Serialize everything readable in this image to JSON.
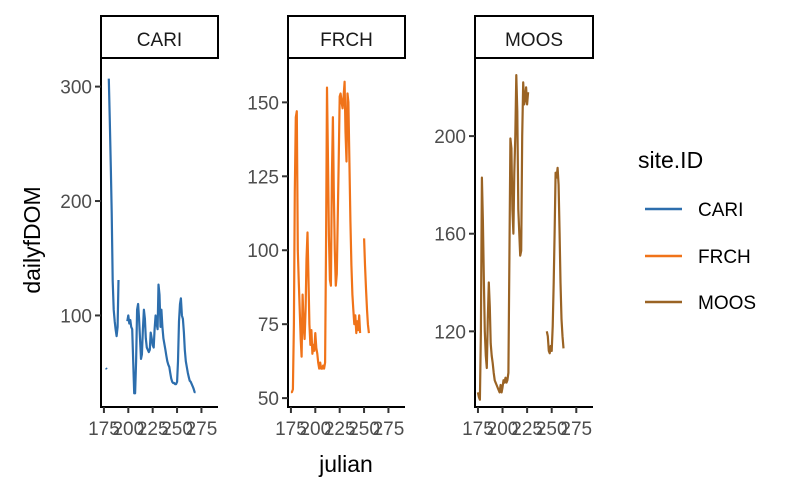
{
  "chart_data": {
    "type": "line",
    "xlabel": "julian",
    "ylabel": "dailyfDOM",
    "xlim": [
      172,
      292
    ],
    "x_ticks": [
      175,
      200,
      225,
      250,
      275
    ],
    "x_tick_labels": [
      "175",
      "200",
      "225",
      "250",
      "275"
    ],
    "grid": false,
    "legend": {
      "title": "site.ID",
      "placement": "right"
    },
    "panels": [
      {
        "strip": "CARI",
        "color": "#2d6ead",
        "ylim": [
          20,
          325
        ],
        "y_ticks": [
          100,
          200,
          300
        ],
        "y_tick_labels": [
          "100",
          "200",
          "300"
        ],
        "segments": [
          [
            [
              177,
              54
            ],
            [
              178,
              53
            ]
          ],
          [
            [
              180,
              307
            ],
            [
              181,
              270
            ],
            [
              182,
              230
            ],
            [
              183,
              190
            ],
            [
              184,
              130
            ],
            [
              185,
              105
            ],
            [
              186,
              95
            ],
            [
              187,
              88
            ],
            [
              188,
              82
            ],
            [
              189,
              90
            ],
            [
              190,
              131
            ]
          ],
          [
            [
              199,
              95
            ],
            [
              200,
              100
            ],
            [
              201,
              93
            ],
            [
              202,
              96
            ],
            [
              203,
              90
            ],
            [
              204,
              88
            ],
            [
              205,
              60
            ],
            [
              206,
              32
            ],
            [
              207,
              32
            ],
            [
              208,
              60
            ],
            [
              209,
              105
            ],
            [
              210,
              110
            ],
            [
              211,
              98
            ],
            [
              212,
              80
            ],
            [
              213,
              62
            ],
            [
              214,
              66
            ],
            [
              215,
              88
            ],
            [
              216,
              105
            ],
            [
              217,
              97
            ],
            [
              218,
              80
            ],
            [
              219,
              72
            ],
            [
              220,
              70
            ],
            [
              221,
              68
            ],
            [
              222,
              70
            ],
            [
              223,
              85
            ],
            [
              224,
              80
            ],
            [
              225,
              74
            ],
            [
              226,
              72
            ],
            [
              227,
              88
            ],
            [
              228,
              100
            ],
            [
              229,
              93
            ],
            [
              230,
              88
            ],
            [
              231,
              127
            ],
            [
              232,
              118
            ],
            [
              233,
              90
            ],
            [
              234,
              105
            ],
            [
              235,
              90
            ],
            [
              236,
              80
            ],
            [
              237,
              75
            ],
            [
              238,
              70
            ],
            [
              239,
              65
            ],
            [
              240,
              60
            ],
            [
              241,
              57
            ],
            [
              242,
              55
            ],
            [
              243,
              50
            ],
            [
              244,
              45
            ],
            [
              245,
              42
            ],
            [
              246,
              41
            ],
            [
              247,
              41
            ],
            [
              248,
              40
            ],
            [
              249,
              40
            ],
            [
              250,
              42
            ],
            [
              251,
              60
            ],
            [
              252,
              95
            ],
            [
              253,
              110
            ],
            [
              254,
              115
            ],
            [
              255,
              100
            ],
            [
              256,
              97
            ],
            [
              257,
              85
            ],
            [
              258,
              70
            ],
            [
              259,
              60
            ],
            [
              260,
              55
            ],
            [
              261,
              50
            ],
            [
              262,
              46
            ],
            [
              263,
              43
            ],
            [
              264,
              42
            ],
            [
              265,
              40
            ],
            [
              266,
              38
            ],
            [
              267,
              36
            ],
            [
              268,
              33
            ],
            [
              269,
              33
            ]
          ]
        ]
      },
      {
        "strip": "FRCH",
        "color": "#f07319",
        "ylim": [
          47,
          165
        ],
        "y_ticks": [
          50,
          75,
          100,
          125,
          150
        ],
        "y_tick_labels": [
          "50",
          "75",
          "100",
          "125",
          "150"
        ],
        "segments": [
          [
            [
              175,
              52
            ],
            [
              176,
              52
            ],
            [
              177,
              53
            ],
            [
              178,
              75
            ],
            [
              179,
              120
            ],
            [
              180,
              145
            ],
            [
              181,
              147
            ],
            [
              182,
              100
            ],
            [
              183,
              90
            ],
            [
              184,
              80
            ],
            [
              185,
              70
            ],
            [
              186,
              64
            ],
            [
              187,
              85
            ],
            [
              188,
              75
            ],
            [
              189,
              70
            ],
            [
              190,
              80
            ],
            [
              191,
              97
            ],
            [
              192,
              106
            ],
            [
              193,
              90
            ],
            [
              194,
              75
            ],
            [
              195,
              68
            ],
            [
              196,
              73
            ],
            [
              197,
              65
            ],
            [
              198,
              68
            ],
            [
              199,
              66
            ],
            [
              200,
              72
            ],
            [
              201,
              67
            ],
            [
              202,
              65
            ],
            [
              203,
              62
            ],
            [
              204,
              60
            ],
            [
              205,
              62
            ],
            [
              206,
              60
            ],
            [
              207,
              60
            ],
            [
              208,
              61
            ],
            [
              209,
              60
            ],
            [
              210,
              62
            ],
            [
              211,
              100
            ],
            [
              212,
              155
            ],
            [
              213,
              130
            ],
            [
              214,
              105
            ],
            [
              215,
              90
            ],
            [
              216,
              88
            ],
            [
              217,
              125
            ],
            [
              218,
              145
            ],
            [
              219,
              120
            ],
            [
              220,
              100
            ],
            [
              221,
              88
            ],
            [
              222,
              92
            ],
            [
              223,
              110
            ],
            [
              224,
              130
            ],
            [
              225,
              152
            ],
            [
              226,
              153
            ],
            [
              227,
              150
            ],
            [
              228,
              148
            ],
            [
              229,
              152
            ],
            [
              230,
              157
            ],
            [
              231,
              140
            ],
            [
              232,
              130
            ],
            [
              233,
              153
            ],
            [
              234,
              150
            ],
            [
              235,
              130
            ],
            [
              236,
              110
            ],
            [
              237,
              95
            ],
            [
              238,
              85
            ],
            [
              239,
              80
            ],
            [
              240,
              75
            ],
            [
              241,
              78
            ],
            [
              242,
              72
            ],
            [
              243,
              76
            ],
            [
              244,
              73
            ],
            [
              245,
              78
            ],
            [
              246,
              72
            ]
          ],
          [
            [
              250,
              104
            ],
            [
              251,
              95
            ],
            [
              252,
              87
            ],
            [
              253,
              80
            ],
            [
              254,
              75
            ],
            [
              255,
              72
            ]
          ]
        ]
      },
      {
        "strip": "MOOS",
        "color": "#9a6324",
        "ylim": [
          89,
          232
        ],
        "y_ticks": [
          120,
          160,
          200
        ],
        "y_tick_labels": [
          "120",
          "160",
          "200"
        ],
        "segments": [
          [
            [
              175,
              95
            ],
            [
              176,
              93
            ],
            [
              177,
              92
            ],
            [
              178,
              120
            ],
            [
              179,
              183
            ],
            [
              180,
              165
            ],
            [
              181,
              140
            ],
            [
              182,
              120
            ],
            [
              183,
              110
            ],
            [
              184,
              105
            ],
            [
              185,
              125
            ],
            [
              186,
              140
            ],
            [
              187,
              130
            ],
            [
              188,
              115
            ],
            [
              189,
              110
            ],
            [
              190,
              107
            ],
            [
              191,
              103
            ],
            [
              192,
              100
            ],
            [
              193,
              99
            ],
            [
              194,
              98
            ],
            [
              195,
              97
            ],
            [
              196,
              96
            ],
            [
              197,
              95
            ],
            [
              198,
              98
            ],
            [
              199,
              95
            ],
            [
              200,
              97
            ],
            [
              201,
              100
            ],
            [
              202,
              99
            ],
            [
              203,
              101
            ],
            [
              204,
              99
            ],
            [
              205,
              100
            ],
            [
              206,
              103
            ],
            [
              207,
              150
            ],
            [
              208,
              199
            ],
            [
              209,
              195
            ],
            [
              210,
              170
            ],
            [
              211,
              160
            ],
            [
              212,
              185
            ],
            [
              213,
              200
            ],
            [
              214,
              225
            ],
            [
              215,
              210
            ],
            [
              216,
              170
            ],
            [
              217,
              160
            ],
            [
              218,
              151
            ],
            [
              219,
              153
            ],
            [
              220,
              200
            ],
            [
              221,
              222
            ],
            [
              222,
              213
            ],
            [
              223,
              215
            ],
            [
              224,
              220
            ],
            [
              225,
              213
            ],
            [
              226,
              218
            ]
          ],
          [
            [
              245,
              120
            ],
            [
              246,
              118
            ],
            [
              247,
              112
            ],
            [
              248,
              111
            ],
            [
              249,
              114
            ],
            [
              250,
              112
            ],
            [
              251,
              122
            ],
            [
              252,
              140
            ],
            [
              253,
              160
            ],
            [
              254,
              185
            ],
            [
              255,
              183
            ],
            [
              256,
              187
            ],
            [
              257,
              180
            ],
            [
              258,
              160
            ],
            [
              259,
              140
            ],
            [
              260,
              125
            ],
            [
              261,
              118
            ],
            [
              262,
              113
            ]
          ]
        ]
      }
    ]
  }
}
